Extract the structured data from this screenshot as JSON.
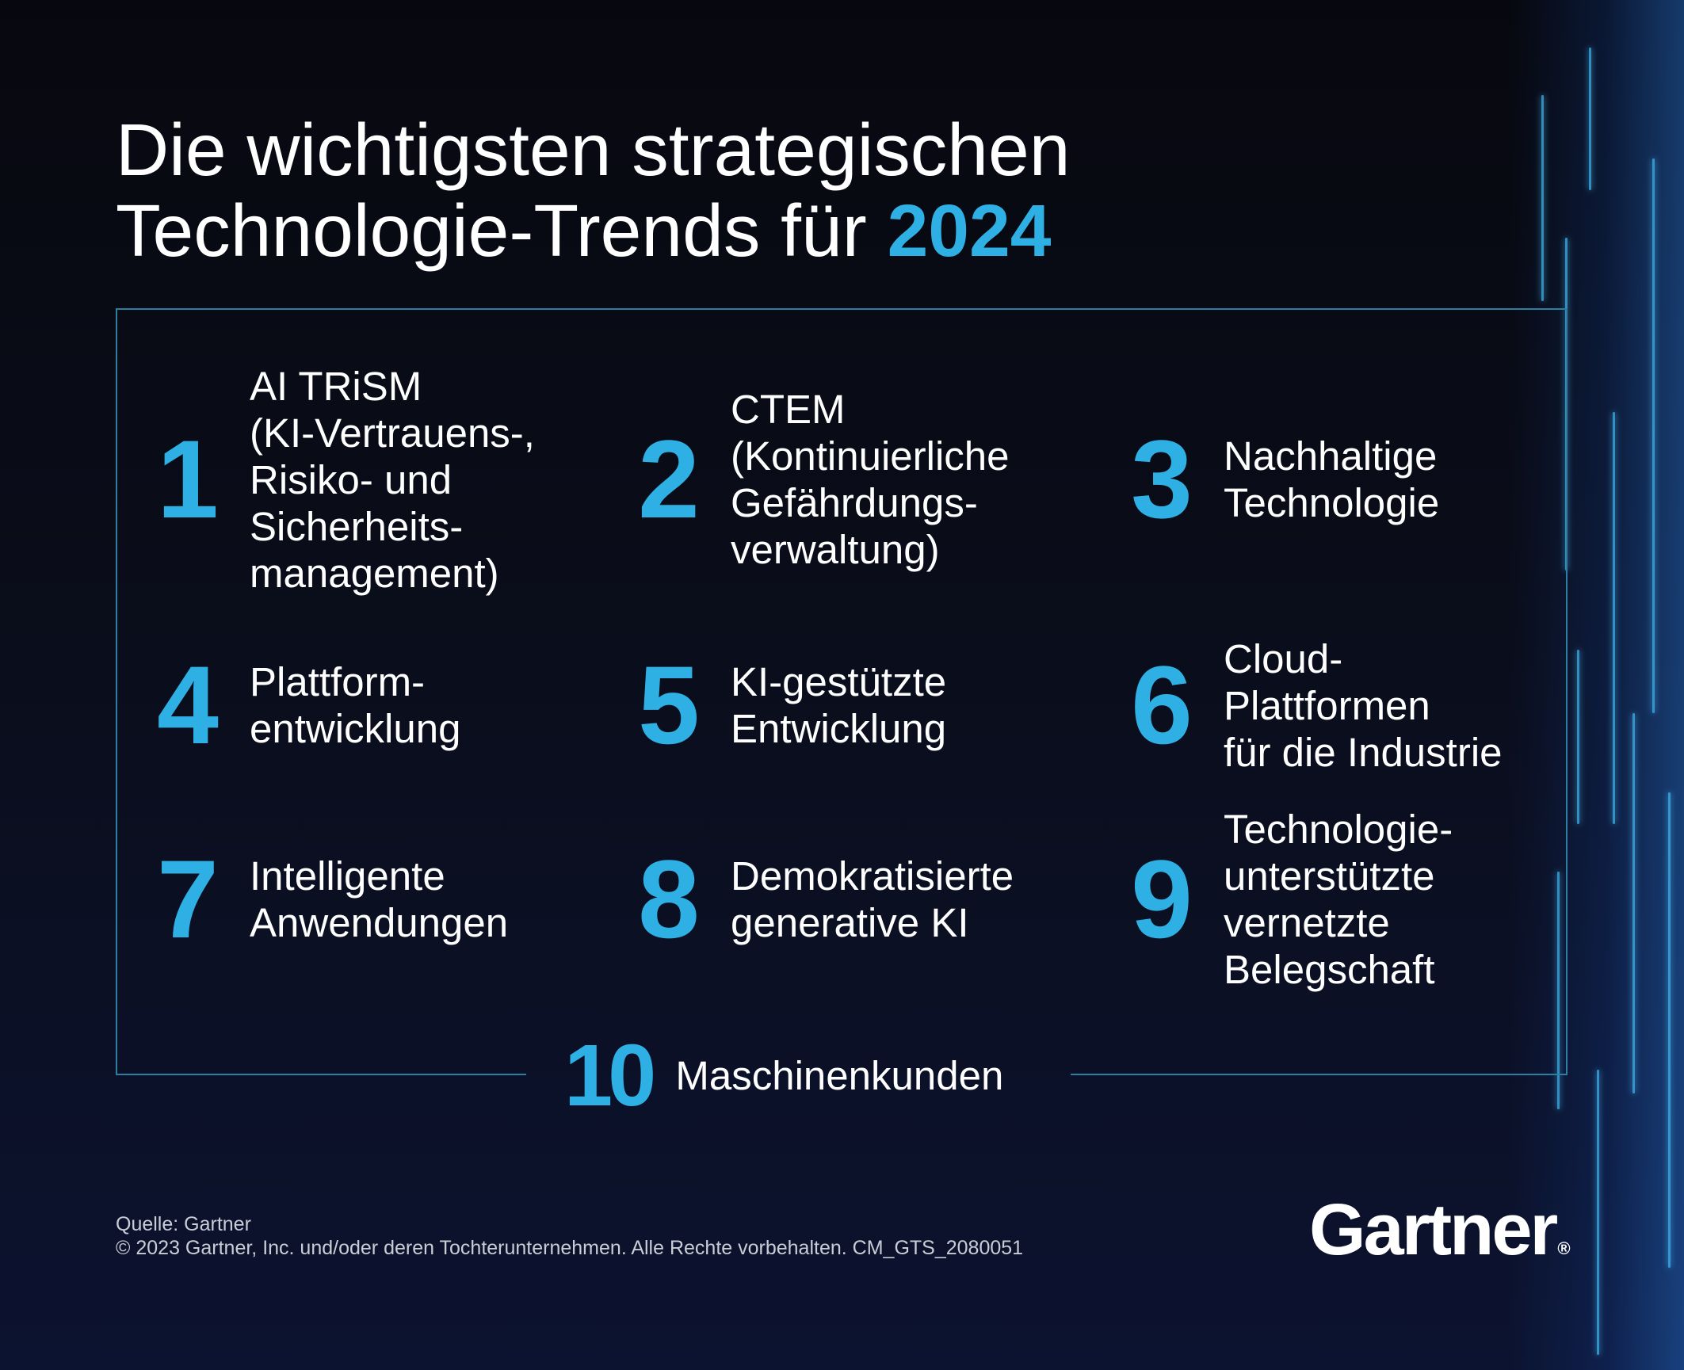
{
  "title": {
    "line1": "Die wichtigsten strategischen",
    "line2": "Technologie-Trends für",
    "year": "2024"
  },
  "trends": [
    {
      "number": "1",
      "label": "AI TRiSM\n(KI-Vertrauens-,\nRisiko- und\nSicherheits-\nmanagement)"
    },
    {
      "number": "2",
      "label": "CTEM\n(Kontinuierliche\nGefährdungs-\nverwaltung)"
    },
    {
      "number": "3",
      "label": "Nachhaltige\nTechnologie"
    },
    {
      "number": "4",
      "label": "Plattform-\nentwicklung"
    },
    {
      "number": "5",
      "label": "KI-gestützte\nEntwicklung"
    },
    {
      "number": "6",
      "label": "Cloud-\nPlattformen\nfür die Industrie"
    },
    {
      "number": "7",
      "label": "Intelligente\nAnwendungen"
    },
    {
      "number": "8",
      "label": "Demokratisierte\ngenerative KI"
    },
    {
      "number": "9",
      "label": "Technologie-\nunterstützte\nvernetzte\nBelegschaft"
    },
    {
      "number": "10",
      "label": "Maschinenkunden"
    }
  ],
  "footer": {
    "source": "Quelle: Gartner",
    "copyright": "© 2023 Gartner, Inc. und/oder deren Tochterunternehmen. Alle Rechte vorbehalten. CM_GTS_2080051"
  },
  "logo": {
    "text": "Gartner",
    "mark": "®"
  },
  "colors": {
    "accent": "#2fb0e4",
    "background": "#0a0d1a",
    "text": "#ffffff",
    "frame": "#2c7fa3"
  }
}
